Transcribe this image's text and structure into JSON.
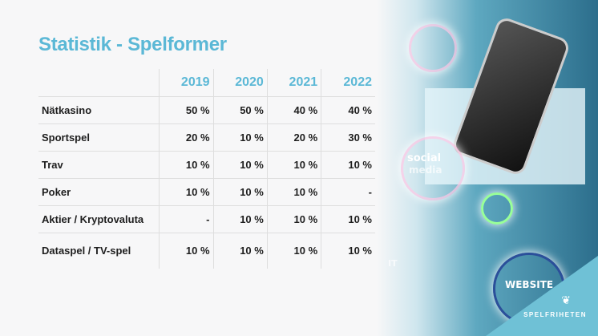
{
  "title": "Statistik - Spelformer",
  "table": {
    "headers": [
      "",
      "2019",
      "2020",
      "2021",
      "2022"
    ],
    "rows": [
      [
        "Nätkasino",
        "50 %",
        "50 %",
        "40 %",
        "40 %"
      ],
      [
        "Sportspel",
        "20 %",
        "10 %",
        "20 %",
        "30 %"
      ],
      [
        "Trav",
        "10 %",
        "10 %",
        "10 %",
        "10 %"
      ],
      [
        "Poker",
        "10 %",
        "10 %",
        "10 %",
        "-"
      ],
      [
        "Aktier / Kryptovaluta",
        "-",
        "10 %",
        "10 %",
        "10 %"
      ],
      [
        "Dataspel / TV-spel",
        "10 %",
        "10 %",
        "10 %",
        "10 %"
      ]
    ]
  },
  "image_labels": {
    "social": "social",
    "media": "media",
    "it": "IT",
    "website": "WEBSITE"
  },
  "logo": "SPELFRIHETEN",
  "colors": {
    "accent": "#5bb8d6"
  }
}
